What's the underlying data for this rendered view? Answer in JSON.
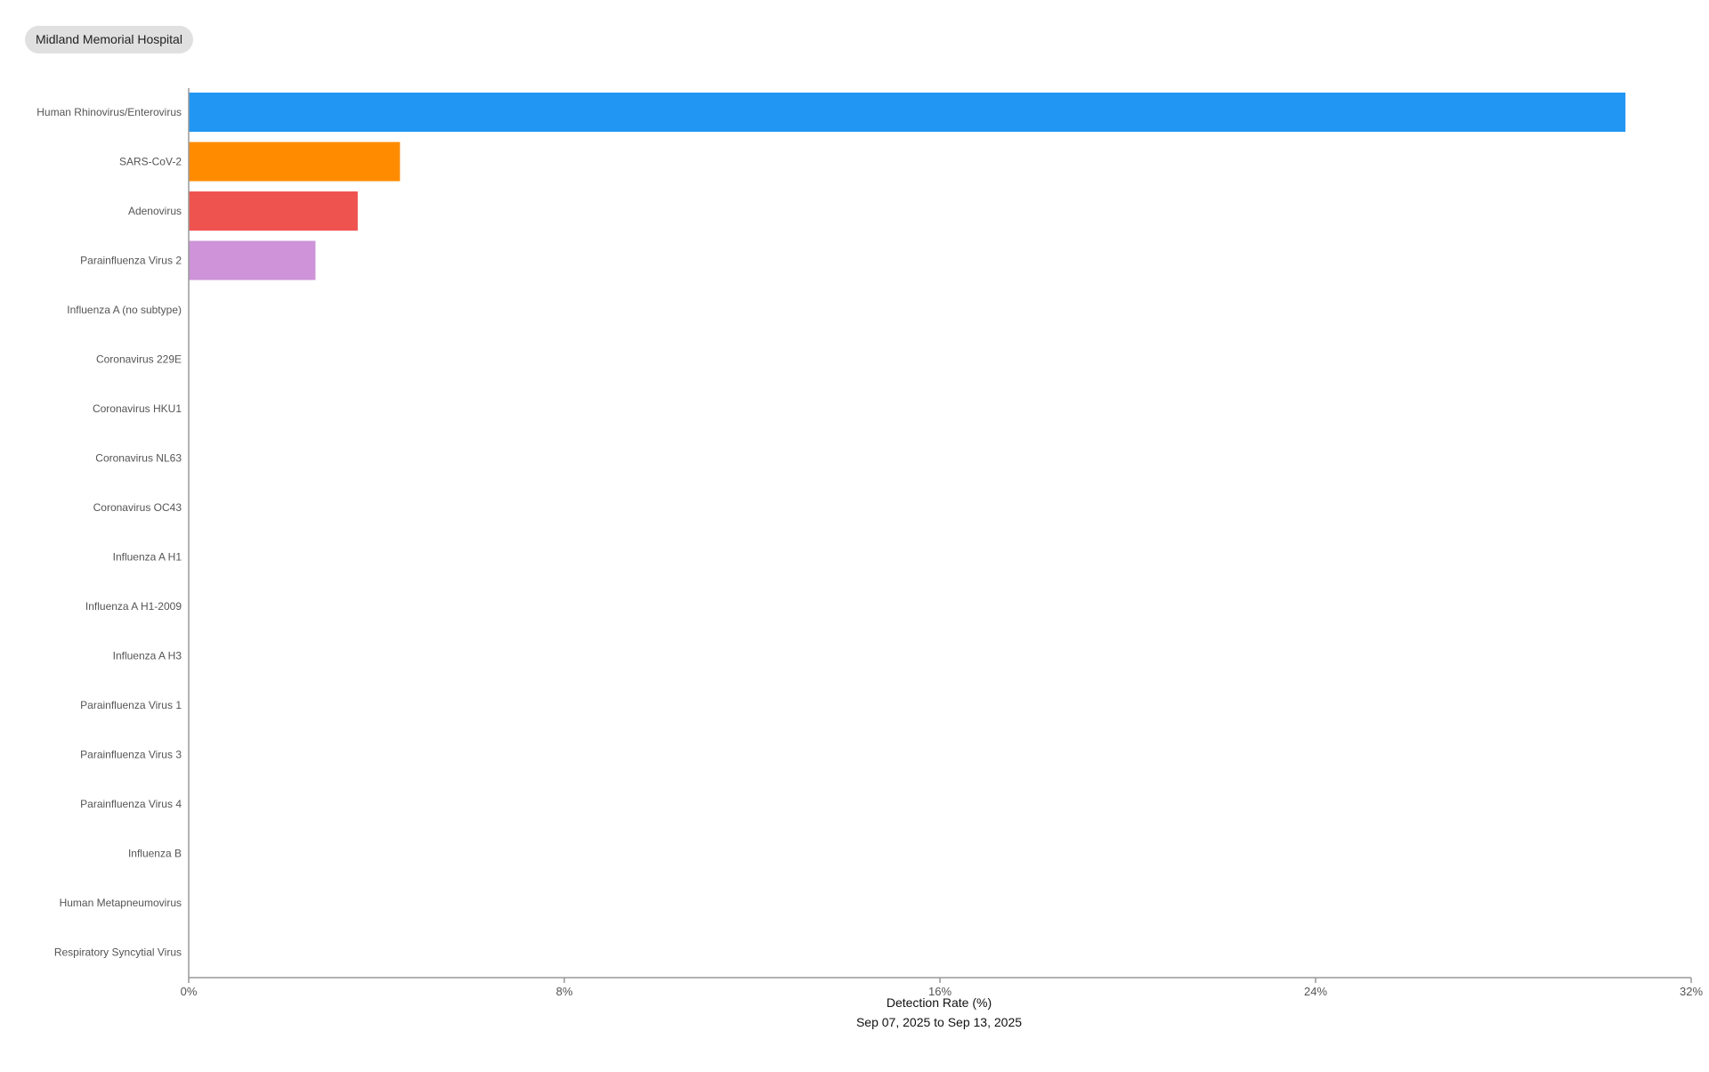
{
  "hospital_chip": {
    "label": "Midland Memorial Hospital"
  },
  "chart_data": {
    "type": "bar",
    "orientation": "horizontal",
    "categories": [
      "Human Rhinovirus/Enterovirus",
      "SARS-CoV-2",
      "Adenovirus",
      "Parainfluenza Virus 2",
      "Influenza A (no subtype)",
      "Coronavirus 229E",
      "Coronavirus HKU1",
      "Coronavirus NL63",
      "Coronavirus OC43",
      "Influenza A H1",
      "Influenza A H1-2009",
      "Influenza A H3",
      "Parainfluenza Virus 1",
      "Parainfluenza Virus 3",
      "Parainfluenza Virus 4",
      "Influenza B",
      "Human Metapneumovirus",
      "Respiratory Syncytial Virus"
    ],
    "values": [
      30.6,
      4.5,
      3.6,
      2.7,
      0,
      0,
      0,
      0,
      0,
      0,
      0,
      0,
      0,
      0,
      0,
      0,
      0,
      0
    ],
    "colors": [
      "#2196f3",
      "#ff8c00",
      "#ef5350",
      "#ce93d8",
      "#90a4ae",
      "#90a4ae",
      "#90a4ae",
      "#90a4ae",
      "#90a4ae",
      "#90a4ae",
      "#90a4ae",
      "#90a4ae",
      "#90a4ae",
      "#90a4ae",
      "#90a4ae",
      "#90a4ae",
      "#90a4ae",
      "#90a4ae"
    ],
    "xlim": [
      0,
      32
    ],
    "xticks": [
      0,
      8,
      16,
      24,
      32
    ],
    "tick_labels": [
      "0%",
      "8%",
      "16%",
      "24%",
      "32%"
    ],
    "xlabel": "Detection Rate (%)",
    "subtitle": "Sep 07, 2025 to Sep 13, 2025",
    "axis_color": "#999999",
    "grid": false
  }
}
